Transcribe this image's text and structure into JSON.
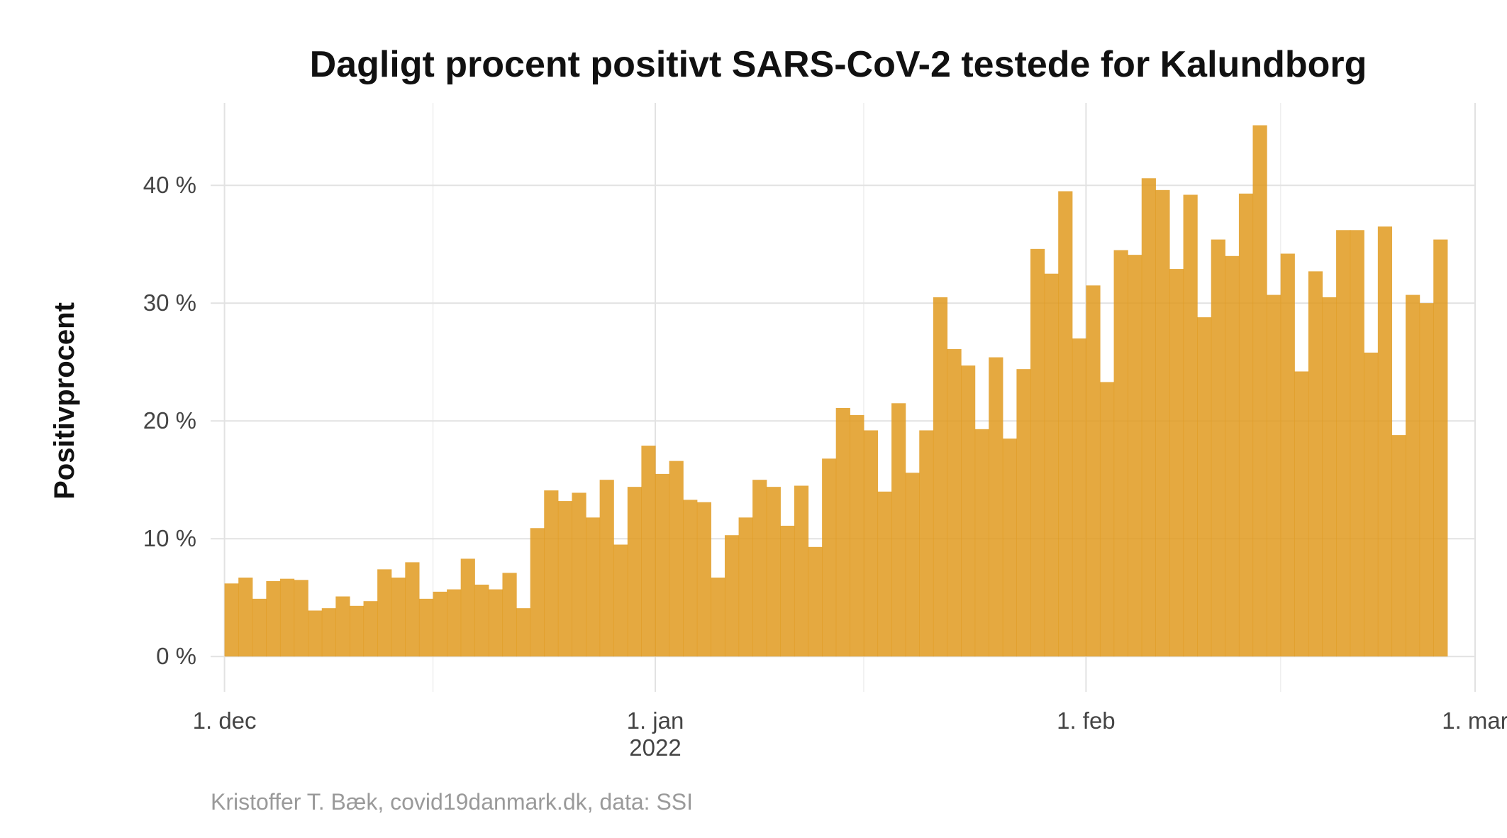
{
  "chart_data": {
    "type": "bar",
    "title": "Dagligt procent positivt SARS-CoV-2 testede for Kalundborg",
    "xlabel": "",
    "ylabel": "Positivprocent",
    "caption": "Kristoffer T. Bæk, covid19danmark.dk, data: SSI",
    "bar_color": "#E09A1E",
    "start_date": "2021-12-01",
    "x_range": [
      "2021-11-30",
      "2022-03-01"
    ],
    "ylim": [
      -0.03,
      0.47
    ],
    "y_ticks": [
      {
        "value": 0,
        "label": "0 %"
      },
      {
        "value": 0.1,
        "label": "10 %"
      },
      {
        "value": 0.2,
        "label": "20 %"
      },
      {
        "value": 0.3,
        "label": "30 %"
      },
      {
        "value": 0.4,
        "label": "40 %"
      }
    ],
    "x_ticks": [
      {
        "date": "2021-12-01",
        "label": "1. dec",
        "sublabel": ""
      },
      {
        "date": "2022-01-01",
        "label": "1. jan",
        "sublabel": "2022"
      },
      {
        "date": "2022-02-01",
        "label": "1. feb",
        "sublabel": ""
      },
      {
        "date": "2022-03-01",
        "label": "1. mar",
        "sublabel": ""
      }
    ],
    "x_minor_grid": [
      "2021-12-16",
      "2022-01-16",
      "2022-02-15"
    ],
    "grid": true,
    "legend": "none",
    "values": [
      0.062,
      0.067,
      0.049,
      0.064,
      0.066,
      0.065,
      0.039,
      0.041,
      0.051,
      0.043,
      0.047,
      0.074,
      0.067,
      0.08,
      0.049,
      0.055,
      0.057,
      0.083,
      0.061,
      0.057,
      0.071,
      0.041,
      0.109,
      0.141,
      0.132,
      0.139,
      0.118,
      0.15,
      0.095,
      0.144,
      0.179,
      0.155,
      0.166,
      0.133,
      0.131,
      0.067,
      0.103,
      0.118,
      0.15,
      0.144,
      0.111,
      0.145,
      0.093,
      0.168,
      0.211,
      0.205,
      0.192,
      0.14,
      0.215,
      0.156,
      0.192,
      0.305,
      0.261,
      0.247,
      0.193,
      0.254,
      0.185,
      0.244,
      0.346,
      0.325,
      0.395,
      0.27,
      0.315,
      0.233,
      0.345,
      0.341,
      0.406,
      0.396,
      0.329,
      0.392,
      0.288,
      0.354,
      0.34,
      0.393,
      0.451,
      0.307,
      0.342,
      0.242,
      0.327,
      0.305,
      0.362,
      0.362,
      0.258,
      0.365,
      0.188,
      0.307,
      0.3,
      0.354
    ]
  }
}
